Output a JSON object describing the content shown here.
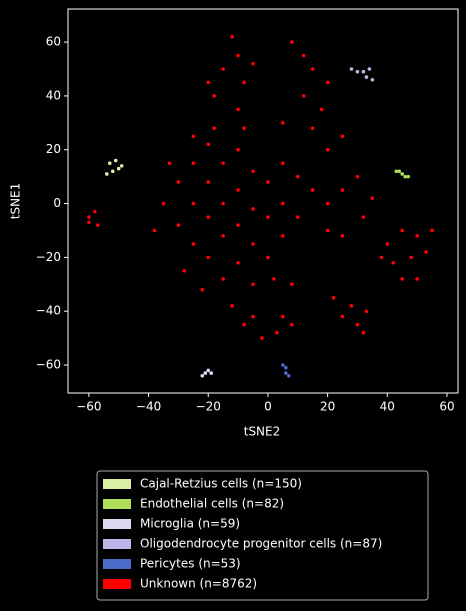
{
  "chart_data": {
    "type": "scatter",
    "x_label": "tSNE2",
    "y_label": "tSNE1",
    "xlim": [
      -67,
      63.7
    ],
    "ylim": [
      -70.4,
      72.3
    ],
    "xticks": [
      {
        "value": -60,
        "label": "−60"
      },
      {
        "value": -40,
        "label": "−40"
      },
      {
        "value": -20,
        "label": "−20"
      },
      0,
      20,
      40,
      60
    ],
    "yticks": [
      {
        "value": -60,
        "label": "−60"
      },
      {
        "value": -40,
        "label": "−40"
      },
      {
        "value": -20,
        "label": "−20"
      },
      0,
      20,
      40,
      60
    ],
    "grid": false,
    "legend": "below",
    "series": [
      {
        "name": "Cajal-Retzius cells (n=150)",
        "color": "#d9f0a3",
        "x": [
          -53,
          -51,
          -50,
          -52,
          -54,
          -49
        ],
        "values": [
          15,
          16,
          13,
          12,
          11,
          14
        ]
      },
      {
        "name": "Endothelial cells (n=82)",
        "color": "#addd5a",
        "x": [
          43,
          45,
          47,
          44,
          46
        ],
        "values": [
          12,
          11,
          10,
          12,
          10
        ]
      },
      {
        "name": "Microglia (n=59)",
        "color": "#dcdaf0",
        "x": [
          -22,
          -21,
          -20,
          -19
        ],
        "values": [
          -64,
          -63,
          -62,
          -63
        ]
      },
      {
        "name": "Oligodendrocyte progenitor cells (n=87)",
        "color": "#bcb6e8",
        "x": [
          28,
          30,
          32,
          34,
          33,
          35
        ],
        "values": [
          50,
          49,
          49,
          50,
          47,
          46
        ]
      },
      {
        "name": "Pericytes (n=53)",
        "color": "#4a6cc8",
        "x": [
          5,
          6,
          6,
          7
        ],
        "values": [
          -60,
          -61,
          -63,
          -64
        ]
      },
      {
        "name": "Unknown (n=8762)",
        "color": "#ff0000",
        "x": [
          -35,
          -30,
          -30,
          -25,
          -25,
          -25,
          -20,
          -20,
          -20,
          -20,
          -15,
          -15,
          -15,
          -15,
          -10,
          -10,
          -10,
          -10,
          -5,
          -5,
          -5,
          -5,
          0,
          0,
          0,
          5,
          5,
          5,
          10,
          10,
          -38,
          -33,
          -28,
          -22,
          -12,
          -18,
          -8,
          2,
          8,
          -25,
          -12,
          -10,
          -15,
          -5,
          8,
          12,
          15,
          -8,
          -18,
          -10,
          20,
          18,
          15,
          25,
          20,
          -20,
          12,
          5,
          15,
          20,
          25,
          30,
          32,
          20,
          25,
          35,
          40,
          45,
          50,
          55,
          42,
          48,
          53,
          45,
          50,
          38,
          22,
          28,
          33,
          30,
          25,
          32,
          5,
          8,
          3,
          -5,
          -8,
          -2,
          -60,
          -58,
          -57,
          -60
        ],
        "values": [
          0,
          8,
          -8,
          15,
          0,
          -15,
          22,
          8,
          -5,
          -20,
          15,
          0,
          -12,
          -28,
          20,
          5,
          -8,
          -22,
          12,
          -2,
          -15,
          -30,
          8,
          -5,
          -20,
          15,
          0,
          -12,
          10,
          -5,
          -10,
          15,
          -25,
          -32,
          -38,
          28,
          28,
          -28,
          -30,
          25,
          62,
          55,
          50,
          52,
          60,
          55,
          50,
          45,
          40,
          35,
          45,
          35,
          28,
          25,
          20,
          45,
          40,
          30,
          5,
          0,
          5,
          10,
          -5,
          -10,
          -12,
          2,
          -15,
          -10,
          -12,
          -10,
          -22,
          -20,
          -18,
          -28,
          -28,
          -20,
          -35,
          -38,
          -40,
          -45,
          -42,
          -48,
          -42,
          -45,
          -48,
          -42,
          -45,
          -50,
          -5,
          -3,
          -8,
          -7
        ]
      }
    ]
  }
}
